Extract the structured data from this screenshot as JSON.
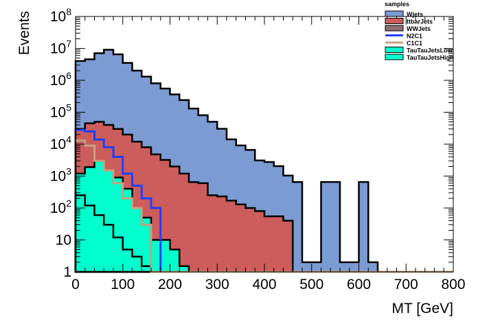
{
  "chart_data": {
    "type": "histogram",
    "xlabel": "MT [GeV]",
    "ylabel": "Events",
    "xlim": [
      0,
      800
    ],
    "ylim": [
      1,
      100000000
    ],
    "yscale": "log",
    "bin_width": 20,
    "x_ticks": [
      "0",
      "100",
      "200",
      "300",
      "400",
      "500",
      "600",
      "700",
      "800"
    ],
    "y_ticks": [
      "1",
      "10",
      "10^2",
      "10^3",
      "10^4",
      "10^5",
      "10^6",
      "10^7",
      "10^8"
    ],
    "legend": {
      "title": "samples",
      "position": "top-right"
    },
    "series": [
      {
        "name": "Wjets",
        "style": "stack",
        "color": "#7b9bd2",
        "values": [
          4000000,
          4500000,
          7000000,
          9000000,
          6500000,
          3500000,
          2000000,
          1300000,
          800000,
          550000,
          360000,
          240000,
          130000,
          80000,
          50000,
          30000,
          14000,
          9000,
          6500,
          3000,
          2700,
          2000,
          1000,
          650,
          1,
          1,
          650,
          650,
          1,
          1,
          650,
          1,
          0,
          0,
          0,
          0,
          0,
          0,
          0,
          0
        ]
      },
      {
        "name": "ttbarJets",
        "style": "stack",
        "color": "#cd5c5c",
        "values": [
          30000,
          45000,
          50000,
          40000,
          30000,
          20000,
          12000,
          8000,
          4800,
          3200,
          2000,
          1200,
          650,
          600,
          250,
          230,
          170,
          130,
          100,
          80,
          55,
          55,
          40,
          1,
          1,
          1,
          1,
          1,
          1,
          1,
          1,
          1,
          1,
          1,
          1,
          1,
          1,
          1,
          1,
          1
        ]
      },
      {
        "name": "WWJets",
        "style": "stack",
        "color": "#8a7070",
        "values": [
          0,
          0,
          0,
          0,
          0,
          0,
          0,
          0,
          0,
          0,
          0,
          0,
          0,
          0,
          0,
          0,
          0,
          0,
          0,
          0,
          0,
          0,
          0,
          0,
          0,
          0,
          0,
          0,
          0,
          0,
          0,
          0,
          0,
          0,
          0,
          0,
          0,
          0,
          0,
          0
        ]
      },
      {
        "name": "N2C1",
        "style": "line",
        "color": "#1f3fff",
        "values": [
          28000,
          25000,
          14000,
          8000,
          4000,
          1200,
          500,
          200,
          100,
          1,
          1,
          1,
          1,
          1,
          1,
          1,
          1,
          1,
          1,
          1,
          1,
          1,
          1,
          1,
          1,
          1,
          1,
          1,
          1,
          1,
          1,
          1,
          1,
          1,
          1,
          1,
          1,
          1,
          1,
          1
        ]
      },
      {
        "name": "C1C1",
        "style": "line",
        "color": "#c8a080",
        "values": [
          13000,
          9000,
          3000,
          1500,
          600,
          200,
          100,
          30,
          1,
          1,
          1,
          1,
          1,
          1,
          1,
          1,
          1,
          1,
          1,
          1,
          1,
          1,
          1,
          1,
          1,
          1,
          1,
          1,
          1,
          1,
          1,
          1,
          1,
          1,
          1,
          1,
          1,
          1,
          1,
          1
        ]
      },
      {
        "name": "TauTauJetsLow",
        "style": "fill",
        "color": "#00ffcc",
        "values": [
          1200,
          1900,
          3000,
          1500,
          900,
          400,
          100,
          50,
          10,
          10,
          5,
          1.5,
          0,
          0,
          0,
          0,
          0,
          0,
          0,
          0,
          0,
          0,
          0,
          0,
          0,
          0,
          0,
          0,
          0,
          0,
          0,
          0,
          0,
          0,
          0,
          0,
          0,
          0,
          0,
          0
        ]
      },
      {
        "name": "TauTauJetsHigh",
        "style": "fill",
        "color": "#00ffcc",
        "values": [
          250,
          120,
          60,
          30,
          12,
          5,
          3,
          1.5,
          0,
          0,
          0,
          0,
          0,
          0,
          0,
          0,
          0,
          0,
          0,
          0,
          0,
          0,
          0,
          0,
          0,
          0,
          0,
          0,
          0,
          0,
          0,
          0,
          0,
          0,
          0,
          0,
          0,
          0,
          0,
          0
        ]
      }
    ]
  }
}
